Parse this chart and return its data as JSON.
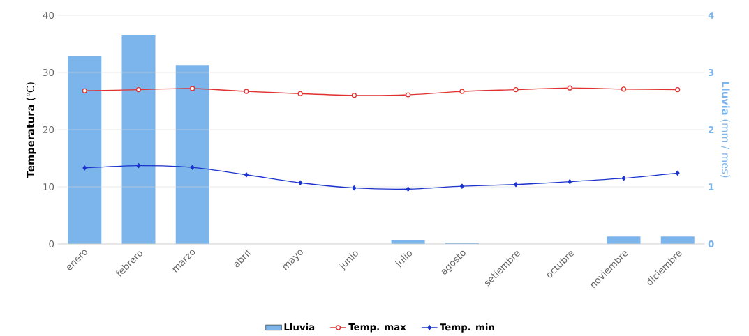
{
  "chart_data": {
    "type": "line",
    "categories": [
      "enero",
      "febrero",
      "marzo",
      "abril",
      "mayo",
      "junio",
      "julio",
      "agosto",
      "setiembre",
      "octubre",
      "noviembre",
      "diciembre"
    ],
    "ylabel": "**Temperatura** (℃)",
    "y2label": "**Lluvia** (mm / mes)",
    "ylim": [
      0,
      40
    ],
    "yticks": [
      0,
      10,
      20,
      30,
      40
    ],
    "y2lim": [
      0,
      4
    ],
    "y2ticks": [
      0,
      1,
      2,
      3,
      4
    ],
    "grid": "y",
    "legend": "bottom",
    "series": [
      {
        "name": "Lluvia",
        "type": "bar",
        "axis": "y2",
        "color": "#7cb5ec",
        "values": [
          3.29,
          3.66,
          3.13,
          0,
          0,
          0,
          0.06,
          0.02,
          0,
          0,
          0.13,
          0.13
        ]
      },
      {
        "name": "Temp. max",
        "color": "#e0302f",
        "marker": "circle",
        "values": [
          26.8,
          27.0,
          27.2,
          26.7,
          26.3,
          26.0,
          26.1,
          26.7,
          27.0,
          27.3,
          27.1,
          27.0
        ]
      },
      {
        "name": "Temp. min",
        "color": "#1c33cc",
        "marker": "diamond",
        "values": [
          13.3,
          13.7,
          13.4,
          12.1,
          10.7,
          9.8,
          9.6,
          10.1,
          10.4,
          10.9,
          11.5,
          12.4
        ]
      }
    ]
  }
}
